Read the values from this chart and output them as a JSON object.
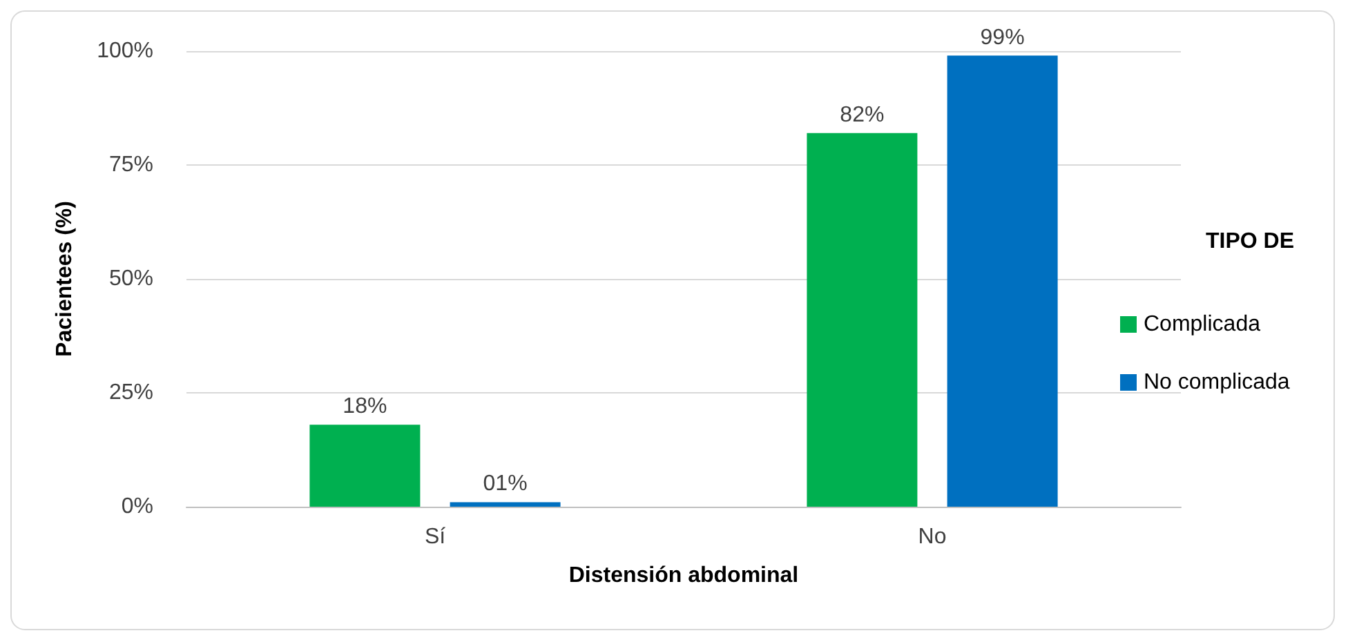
{
  "chart_data": {
    "type": "bar",
    "xlabel": "Distensión abdominal",
    "ylabel": "Pacientees (%)",
    "legend_title": "TIPO DE",
    "categories": [
      "Sí",
      "No"
    ],
    "series": [
      {
        "name": "Complicada",
        "color": "#00b050",
        "values": [
          18,
          82
        ],
        "value_labels": [
          "18%",
          "82%"
        ]
      },
      {
        "name": "No complicada",
        "color": "#0070c0",
        "values": [
          1,
          99
        ],
        "value_labels": [
          "01%",
          "99%"
        ]
      }
    ],
    "ylim": [
      0,
      100
    ],
    "yticks": [
      {
        "value": 0,
        "label": "0%"
      },
      {
        "value": 25,
        "label": "25%"
      },
      {
        "value": 50,
        "label": "50%"
      },
      {
        "value": 75,
        "label": "75%"
      },
      {
        "value": 100,
        "label": "100%"
      }
    ],
    "grid": "y",
    "legend": "right"
  }
}
